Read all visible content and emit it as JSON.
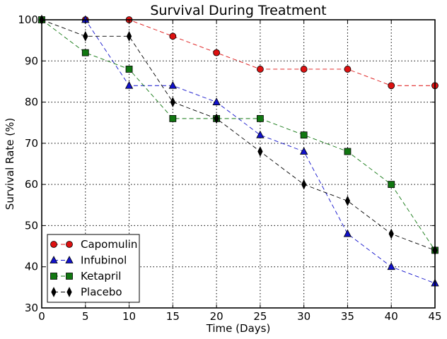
{
  "chart_data": {
    "type": "line",
    "title": "Survival During Treatment",
    "xlabel": "Time (Days)",
    "ylabel": "Survival Rate (%)",
    "xlim": [
      0,
      45
    ],
    "ylim": [
      30,
      100
    ],
    "xticks": [
      0,
      5,
      10,
      15,
      20,
      25,
      30,
      35,
      40,
      45
    ],
    "yticks": [
      30,
      40,
      50,
      60,
      70,
      80,
      90,
      100
    ],
    "grid": true,
    "legend_position": "lower-left",
    "x": [
      0,
      5,
      10,
      15,
      20,
      25,
      30,
      35,
      40,
      45
    ],
    "series": [
      {
        "name": "Capomulin",
        "marker": "circle",
        "color": "#dd1111",
        "values": [
          100,
          100,
          100,
          96,
          92,
          88,
          88,
          88,
          84,
          84
        ]
      },
      {
        "name": "Infubinol",
        "marker": "triangle",
        "color": "#1111cc",
        "values": [
          100,
          100,
          84,
          84,
          80,
          72,
          68,
          48,
          40,
          36
        ]
      },
      {
        "name": "Ketapril",
        "marker": "square",
        "color": "#117711",
        "values": [
          100,
          92,
          88,
          76,
          76,
          76,
          72,
          68,
          60,
          44
        ]
      },
      {
        "name": "Placebo",
        "marker": "thin-diamond",
        "color": "#000000",
        "values": [
          100,
          96,
          96,
          80,
          76,
          68,
          60,
          56,
          48,
          44
        ]
      }
    ]
  }
}
